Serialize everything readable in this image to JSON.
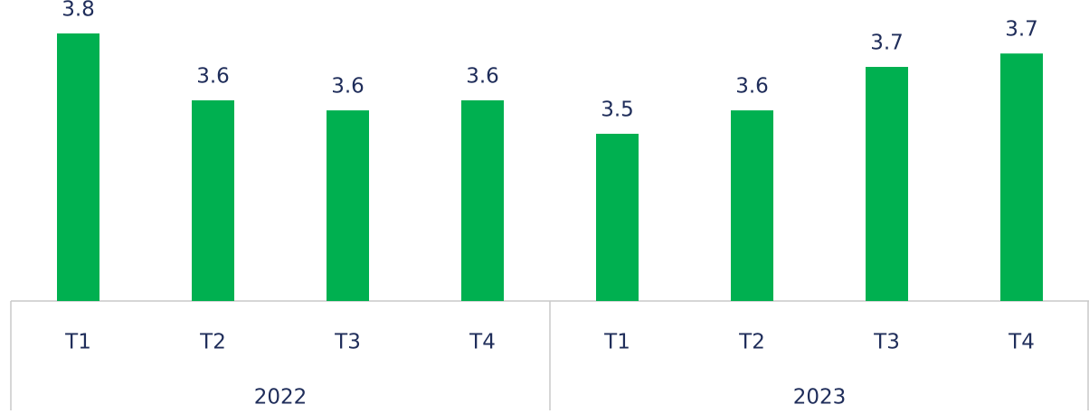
{
  "chart_data": {
    "type": "bar",
    "categories": [
      "T1",
      "T2",
      "T3",
      "T4",
      "T1",
      "T2",
      "T3",
      "T4"
    ],
    "groups": [
      "2022",
      "2023"
    ],
    "values": [
      3.8,
      3.6,
      3.57,
      3.6,
      3.5,
      3.57,
      3.7,
      3.74
    ],
    "value_labels": [
      "3.8",
      "3.6",
      "3.6",
      "3.6",
      "3.5",
      "3.6",
      "3.7",
      "3.7"
    ],
    "color": "#00b050",
    "ylim": [
      3.0,
      3.9
    ]
  }
}
